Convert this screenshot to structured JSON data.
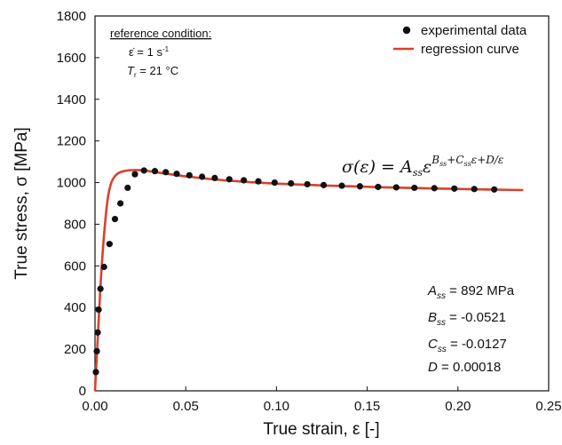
{
  "chart_data": {
    "type": "scatter",
    "xlabel": "True strain, ε [-]",
    "ylabel": "True stress, σ [MPa]",
    "xlim": [
      0,
      0.25
    ],
    "ylim": [
      0,
      1800
    ],
    "x_ticks": [
      "0.00",
      "0.05",
      "0.10",
      "0.15",
      "0.20",
      "0.25"
    ],
    "y_ticks": [
      "0",
      "200",
      "400",
      "600",
      "800",
      "1000",
      "1200",
      "1400",
      "1600",
      "1800"
    ],
    "x_tick_values": [
      0,
      0.05,
      0.1,
      0.15,
      0.2,
      0.25
    ],
    "y_tick_values": [
      0,
      200,
      400,
      600,
      800,
      1000,
      1200,
      1400,
      1600,
      1800
    ],
    "grid": false,
    "legend_position": "top-right",
    "series": [
      {
        "name": "experimental data",
        "kind": "scatter",
        "color": "#111111",
        "points": [
          [
            0.0005,
            90
          ],
          [
            0.001,
            190
          ],
          [
            0.0015,
            280
          ],
          [
            0.002,
            390
          ],
          [
            0.003,
            490
          ],
          [
            0.005,
            595
          ],
          [
            0.008,
            705
          ],
          [
            0.011,
            825
          ],
          [
            0.014,
            900
          ],
          [
            0.018,
            975
          ],
          [
            0.022,
            1040
          ],
          [
            0.027,
            1058
          ],
          [
            0.033,
            1055
          ],
          [
            0.039,
            1050
          ],
          [
            0.045,
            1042
          ],
          [
            0.052,
            1035
          ],
          [
            0.059,
            1028
          ],
          [
            0.066,
            1022
          ],
          [
            0.074,
            1016
          ],
          [
            0.082,
            1011
          ],
          [
            0.09,
            1006
          ],
          [
            0.099,
            1000
          ],
          [
            0.108,
            996
          ],
          [
            0.117,
            992
          ],
          [
            0.126,
            988
          ],
          [
            0.136,
            985
          ],
          [
            0.146,
            982
          ],
          [
            0.156,
            979
          ],
          [
            0.166,
            977
          ],
          [
            0.176,
            975
          ],
          [
            0.187,
            973
          ],
          [
            0.198,
            971
          ],
          [
            0.209,
            969
          ],
          [
            0.22,
            967
          ]
        ]
      },
      {
        "name": "regression curve",
        "kind": "line",
        "color": "#d9412b",
        "points": [
          [
            0.0,
            0
          ],
          [
            0.0015,
            250
          ],
          [
            0.003,
            500
          ],
          [
            0.005,
            750
          ],
          [
            0.007,
            920
          ],
          [
            0.009,
            1000
          ],
          [
            0.012,
            1040
          ],
          [
            0.016,
            1055
          ],
          [
            0.021,
            1060
          ],
          [
            0.027,
            1058
          ],
          [
            0.035,
            1048
          ],
          [
            0.05,
            1030
          ],
          [
            0.07,
            1012
          ],
          [
            0.1,
            995
          ],
          [
            0.13,
            985
          ],
          [
            0.16,
            977
          ],
          [
            0.19,
            971
          ],
          [
            0.215,
            967
          ],
          [
            0.236,
            964
          ]
        ]
      }
    ],
    "legend": {
      "experimental": "experimental data",
      "regression": "regression curve"
    },
    "reference": {
      "title": "reference condition:",
      "rate": "ε̇ = 1 s",
      "rate_exp": "-1",
      "temp_symbol": "T",
      "temp_sub": "r",
      "temp_value": " = 21 °C"
    },
    "equation": {
      "lhs": "σ(ε) = ",
      "A": "A",
      "A_sub": "ss",
      "base": "ε",
      "exp_B": "B",
      "exp_B_sub": "ss",
      "exp_plus1": "+",
      "exp_C": "C",
      "exp_C_sub": "ss",
      "exp_eps": "ε",
      "exp_tail": "+D/ε"
    },
    "parameters": [
      {
        "symbol": "A",
        "sub": "ss",
        "value": " = 892 MPa"
      },
      {
        "symbol": "B",
        "sub": "ss",
        "value": " = -0.0521"
      },
      {
        "symbol": "C",
        "sub": "ss",
        "value": " = -0.0127"
      },
      {
        "symbol": "D",
        "sub": "",
        "value": " = 0.00018"
      }
    ]
  }
}
